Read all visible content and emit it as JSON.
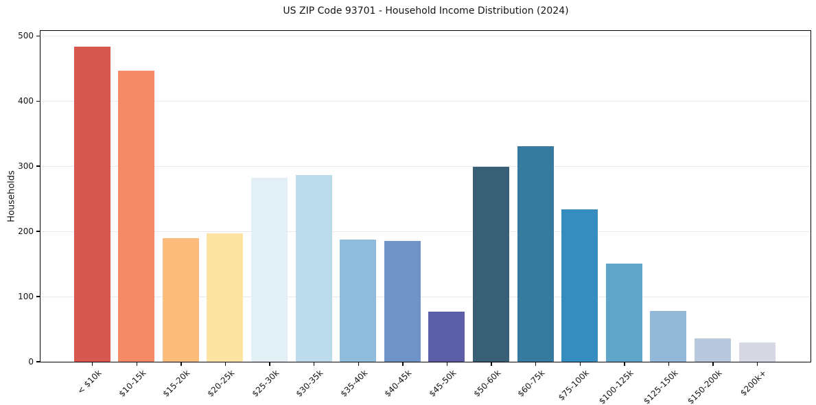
{
  "figure": {
    "background_color": "#ffffff",
    "text_color": "#141414",
    "grid_color": "#e8e8ec",
    "spine_color": "#000000"
  },
  "chart_data": {
    "type": "bar",
    "title": "US ZIP Code 93701 - Household Income Distribution (2024)",
    "xlabel": "",
    "ylabel": "Households",
    "ylim": [
      0,
      500
    ],
    "yticks": [
      0,
      100,
      200,
      300,
      400,
      500
    ],
    "grid": "horizontal-only",
    "legend": "none",
    "x_tick_rotation_deg": 45,
    "categories": [
      "< $10k",
      "$10-15k",
      "$15-20k",
      "$20-25k",
      "$25-30k",
      "$30-35k",
      "$35-40k",
      "$40-45k",
      "$45-50k",
      "$50-60k",
      "$60-75k",
      "$75-100k",
      "$100-125k",
      "$125-150k",
      "$150-200k",
      "$200k+"
    ],
    "values": [
      483,
      447,
      190,
      197,
      282,
      286,
      187,
      185,
      77,
      299,
      331,
      234,
      151,
      78,
      36,
      29
    ],
    "bar_colors": [
      "#d6584f",
      "#f48a66",
      "#fbbc7c",
      "#fde4a3",
      "#e2f0f6",
      "#bcdcec",
      "#90bcdc",
      "#7094c8",
      "#5c5ea8",
      "#395f77",
      "#367aa0",
      "#358cbe",
      "#5fa6c8",
      "#93b8d8",
      "#b8c9de",
      "#d6d8e4"
    ]
  }
}
